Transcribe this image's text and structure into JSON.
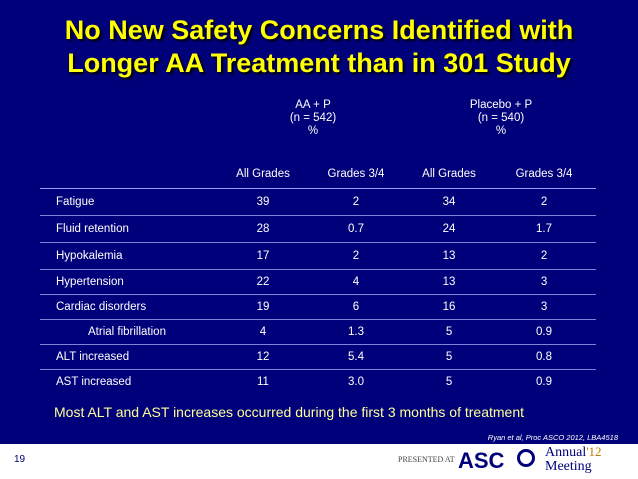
{
  "slide": {
    "title_line1": "No New Safety Concerns Identified with",
    "title_line2": "Longer AA Treatment than in 301 Study",
    "footnote": "Most ALT and AST increases occurred during the first 3 months of treatment",
    "citation": "Ryan et al, Proc ASCO 2012, LBA4518",
    "slide_number": "19",
    "presented_at": "PRESENTED AT",
    "logo_asco": "ASC",
    "logo_annual": "Annual",
    "logo_year": "'12",
    "logo_meeting": "Meeting"
  },
  "table": {
    "group1": {
      "line1": "AA + P",
      "line2": "(n = 542)",
      "line3": "%"
    },
    "group2": {
      "line1": "Placebo + P",
      "line2": "(n = 540)",
      "line3": "%"
    },
    "sub_headers": [
      "All Grades",
      "Grades 3/4",
      "All Grades",
      "Grades 3/4"
    ],
    "rows": [
      {
        "label": "Fatigue",
        "values": [
          "39",
          "2",
          "34",
          "2"
        ]
      },
      {
        "label": "Fluid retention",
        "values": [
          "28",
          "0.7",
          "24",
          "1.7"
        ]
      },
      {
        "label": "Hypokalemia",
        "values": [
          "17",
          "2",
          "13",
          "2"
        ]
      },
      {
        "label": "Hypertension",
        "values": [
          "22",
          "4",
          "13",
          "3"
        ]
      },
      {
        "label": "Cardiac disorders",
        "values": [
          "19",
          "6",
          "16",
          "3"
        ]
      },
      {
        "label": "Atrial fibrillation",
        "values": [
          "4",
          "1.3",
          "5",
          "0.9"
        ]
      },
      {
        "label": "ALT increased",
        "values": [
          "12",
          "5.4",
          "5",
          "0.8"
        ]
      },
      {
        "label": "AST increased",
        "values": [
          "11",
          "3.0",
          "5",
          "0.9"
        ]
      }
    ]
  },
  "colors": {
    "background": "#00007a",
    "title": "#ffff00",
    "footnote": "#ffff99"
  }
}
